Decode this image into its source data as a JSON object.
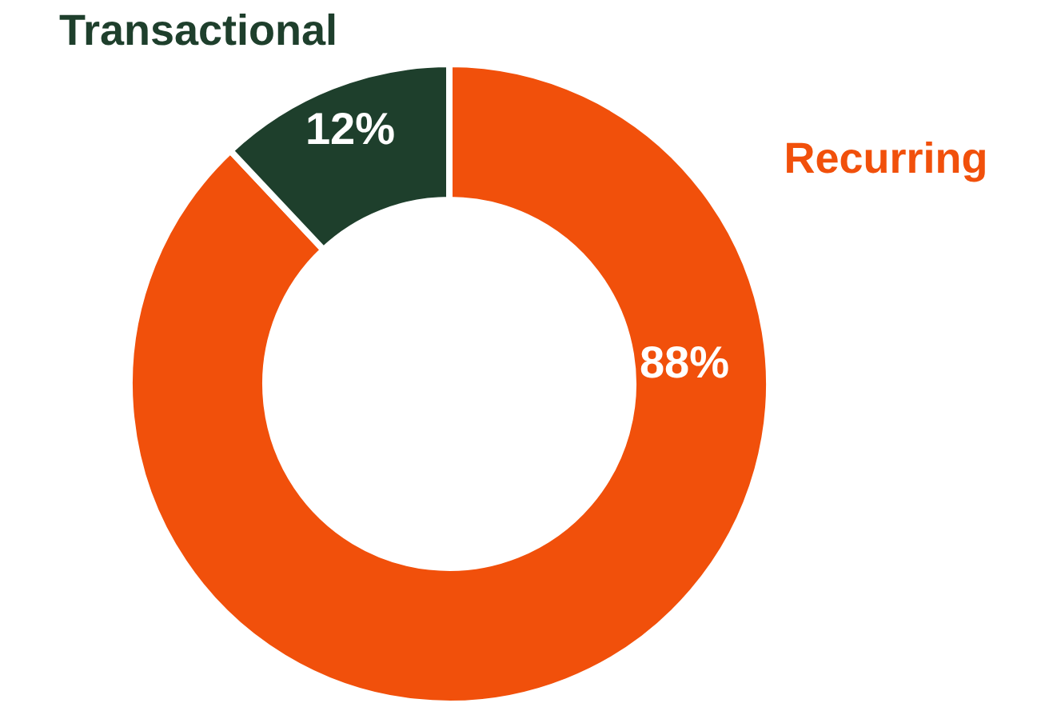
{
  "chart_data": {
    "type": "donut",
    "categories": [
      "Recurring",
      "Transactional"
    ],
    "values": [
      88,
      12
    ],
    "colors": [
      "#f1500b",
      "#1e3f2c"
    ],
    "value_labels": [
      "88%",
      "12%"
    ]
  }
}
